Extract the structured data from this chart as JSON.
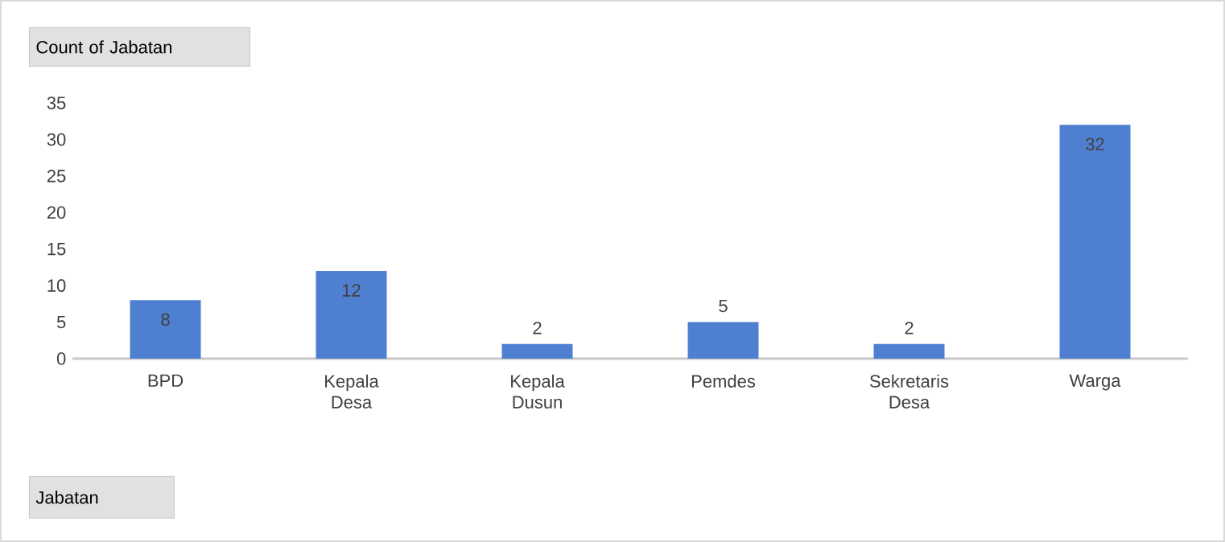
{
  "chart_data": {
    "type": "bar",
    "title": "Count of Jabatan",
    "annotations": [
      "Jabatan"
    ],
    "categories": [
      "BPD",
      "Kepala Desa",
      "Kepala Dusun",
      "Pemdes",
      "Sekretaris Desa",
      "Warga"
    ],
    "values": [
      8,
      12,
      2,
      5,
      2,
      32
    ],
    "color": "#4f7fd0",
    "ylim": [
      0,
      35
    ],
    "yticks": [
      0,
      5,
      10,
      15,
      20,
      25,
      30,
      35
    ],
    "data_labels": true
  }
}
